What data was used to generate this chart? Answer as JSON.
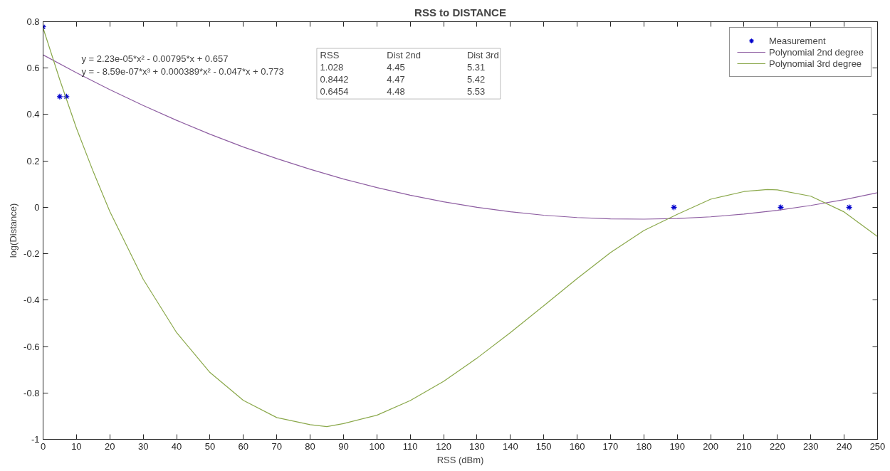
{
  "chart_data": {
    "type": "line",
    "title": "RSS to DISTANCE",
    "xlabel": "RSS (dBm)",
    "ylabel": "log(Distance)",
    "xlim": [
      0,
      250
    ],
    "xticks": [
      0,
      10,
      20,
      30,
      40,
      50,
      60,
      70,
      80,
      90,
      100,
      110,
      120,
      130,
      140,
      150,
      160,
      170,
      180,
      190,
      200,
      210,
      220,
      230,
      240,
      250
    ],
    "ylim": [
      -1,
      0.8
    ],
    "yticks": [
      -1,
      -0.8,
      -0.6,
      -0.4,
      -0.2,
      0,
      0.2,
      0.4,
      0.6,
      0.8
    ],
    "grid": false,
    "legend": "top right",
    "series": [
      {
        "name": "Measurement",
        "type": "scatter",
        "marker": "cross",
        "color": "#0000cc",
        "x": [
          0,
          5,
          7,
          189,
          221,
          241.5
        ],
        "values": [
          0.778,
          0.477,
          0.477,
          0,
          0,
          0
        ]
      },
      {
        "name": "Polynomial 2nd degree",
        "marker": "none",
        "line_style": "solid",
        "color": "#8e5ea2",
        "x": [
          0,
          10,
          20,
          30,
          40,
          50,
          60,
          70,
          80,
          90,
          100,
          110,
          120,
          130,
          140,
          150,
          160,
          170,
          180,
          190,
          200,
          210,
          220,
          230,
          240,
          250
        ],
        "values": [
          0.657,
          0.58,
          0.507,
          0.439,
          0.375,
          0.315,
          0.26,
          0.21,
          0.164,
          0.122,
          0.085,
          0.052,
          0.024,
          0.0,
          -0.019,
          -0.034,
          -0.044,
          -0.05,
          -0.051,
          -0.048,
          -0.041,
          -0.029,
          -0.013,
          0.008,
          0.033,
          0.063
        ]
      },
      {
        "name": "Polynomial 3rd degree",
        "marker": "none",
        "line_style": "solid",
        "color": "#8aa84a",
        "x": [
          0,
          5,
          10,
          15,
          20,
          30,
          40,
          50,
          60,
          70,
          80,
          85,
          90,
          100,
          110,
          120,
          130,
          140,
          150,
          160,
          170,
          180,
          190,
          200,
          210,
          217,
          220,
          230,
          240,
          250
        ],
        "values": [
          0.773,
          0.55,
          0.341,
          0.155,
          -0.018,
          -0.31,
          -0.54,
          -0.712,
          -0.832,
          -0.906,
          -0.937,
          -0.945,
          -0.932,
          -0.896,
          -0.833,
          -0.75,
          -0.65,
          -0.54,
          -0.424,
          -0.307,
          -0.195,
          -0.1,
          -0.03,
          0.035,
          0.068,
          0.077,
          0.075,
          0.048,
          -0.02,
          -0.126
        ]
      }
    ],
    "annotations": [
      "y = 2.23e-05*x² - 0.00795*x + 0.657",
      "y = - 8.59e-07*x³ + 0.000389*x² - 0.047*x + 0.773",
      "RSS",
      "Dist 2nd",
      "Dist 3rd",
      "1.028",
      "4.45",
      "5.31",
      "0.8442",
      "4.47",
      "5.42",
      "0.6454",
      "4.48",
      "5.53"
    ]
  }
}
